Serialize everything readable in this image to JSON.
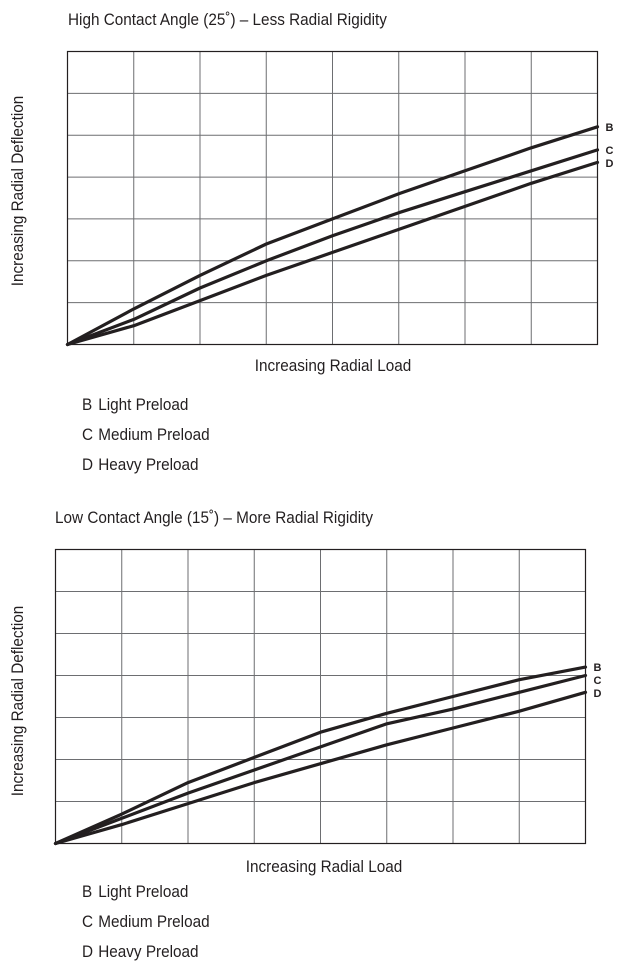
{
  "chart_data": [
    {
      "type": "line",
      "title": "High Contact Angle (25˚) – Less Radial Rigidity",
      "xlabel": "Increasing Radial Load",
      "ylabel": "Increasing Radial Deflection",
      "xlim": [
        0,
        8
      ],
      "ylim": [
        0,
        7
      ],
      "grid": true,
      "series": [
        {
          "name": "B",
          "x": [
            0,
            1,
            2,
            3,
            4,
            5,
            6,
            7,
            8
          ],
          "y": [
            0,
            0.85,
            1.65,
            2.4,
            3.0,
            3.6,
            4.15,
            4.7,
            5.2
          ]
        },
        {
          "name": "C",
          "x": [
            0,
            1,
            2,
            3,
            4,
            5,
            6,
            7,
            8
          ],
          "y": [
            0,
            0.6,
            1.35,
            2.0,
            2.6,
            3.15,
            3.65,
            4.15,
            4.65
          ]
        },
        {
          "name": "D",
          "x": [
            0,
            1,
            2,
            3,
            4,
            5,
            6,
            7,
            8
          ],
          "y": [
            0,
            0.45,
            1.05,
            1.65,
            2.2,
            2.75,
            3.3,
            3.85,
            4.35
          ]
        }
      ],
      "legend": [
        {
          "key": "B",
          "label": "Light Preload"
        },
        {
          "key": "C",
          "label": "Medium Preload"
        },
        {
          "key": "D",
          "label": "Heavy Preload"
        }
      ]
    },
    {
      "type": "line",
      "title": "Low Contact Angle (15˚) – More Radial Rigidity",
      "xlabel": "Increasing Radial Load",
      "ylabel": "Increasing Radial Deflection",
      "xlim": [
        0,
        8
      ],
      "ylim": [
        0,
        7
      ],
      "grid": true,
      "series": [
        {
          "name": "B",
          "x": [
            0,
            1,
            2,
            3,
            4,
            5,
            6,
            7,
            8
          ],
          "y": [
            0,
            0.7,
            1.45,
            2.05,
            2.65,
            3.1,
            3.5,
            3.9,
            4.2
          ]
        },
        {
          "name": "C",
          "x": [
            0,
            1,
            2,
            3,
            4,
            5,
            6,
            7,
            8
          ],
          "y": [
            0,
            0.6,
            1.2,
            1.75,
            2.3,
            2.85,
            3.2,
            3.6,
            4.0
          ]
        },
        {
          "name": "D",
          "x": [
            0,
            1,
            2,
            3,
            4,
            5,
            6,
            7,
            8
          ],
          "y": [
            0,
            0.45,
            0.95,
            1.45,
            1.9,
            2.35,
            2.75,
            3.15,
            3.6
          ]
        }
      ],
      "legend": [
        {
          "key": "B",
          "label": "Light Preload"
        },
        {
          "key": "C",
          "label": "Medium Preload"
        },
        {
          "key": "D",
          "label": "Heavy Preload"
        }
      ]
    }
  ]
}
